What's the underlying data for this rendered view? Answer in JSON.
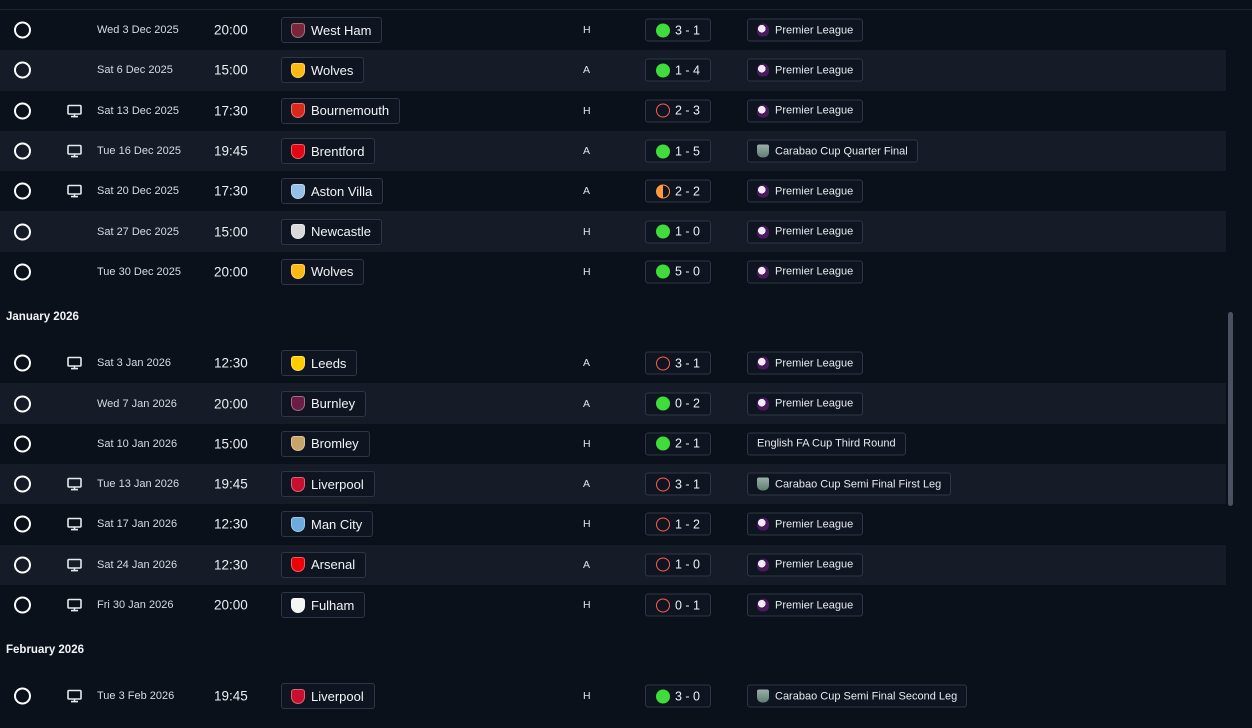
{
  "colors": {
    "win": "#3fdc3c",
    "loss": "#ff5a4f",
    "draw": "#ff9a3c",
    "row_alt": "#151c27",
    "background": "#0b111b"
  },
  "groups": [
    {
      "month": "",
      "fixtures": [
        {
          "date": "Wed 3 Dec 2025",
          "time": "20:00",
          "tv": false,
          "team": "West Ham",
          "crest_color": "#7a263a",
          "venue": "H",
          "outcome": "win",
          "score": "3 - 1",
          "competition": "Premier League",
          "comp_icon": "premier-league-icon"
        },
        {
          "date": "Sat 6 Dec 2025",
          "time": "15:00",
          "tv": false,
          "team": "Wolves",
          "crest_color": "#fdb913",
          "venue": "A",
          "outcome": "win",
          "score": "1 - 4",
          "competition": "Premier League",
          "comp_icon": "premier-league-icon"
        },
        {
          "date": "Sat 13 Dec 2025",
          "time": "17:30",
          "tv": true,
          "team": "Bournemouth",
          "crest_color": "#da291c",
          "venue": "H",
          "outcome": "loss",
          "score": "2 - 3",
          "competition": "Premier League",
          "comp_icon": "premier-league-icon"
        },
        {
          "date": "Tue 16 Dec 2025",
          "time": "19:45",
          "tv": true,
          "team": "Brentford",
          "crest_color": "#e30613",
          "venue": "A",
          "outcome": "win",
          "score": "1 - 5",
          "competition": "Carabao Cup Quarter Final",
          "comp_icon": "carabao-cup-icon"
        },
        {
          "date": "Sat 20 Dec 2025",
          "time": "17:30",
          "tv": true,
          "team": "Aston Villa",
          "crest_color": "#95bfe5",
          "venue": "A",
          "outcome": "draw",
          "score": "2 - 2",
          "competition": "Premier League",
          "comp_icon": "premier-league-icon"
        },
        {
          "date": "Sat 27 Dec 2025",
          "time": "15:00",
          "tv": false,
          "team": "Newcastle",
          "crest_color": "#d9d9d9",
          "venue": "H",
          "outcome": "win",
          "score": "1 - 0",
          "competition": "Premier League",
          "comp_icon": "premier-league-icon"
        },
        {
          "date": "Tue 30 Dec 2025",
          "time": "20:00",
          "tv": false,
          "team": "Wolves",
          "crest_color": "#fdb913",
          "venue": "H",
          "outcome": "win",
          "score": "5 - 0",
          "competition": "Premier League",
          "comp_icon": "premier-league-icon"
        }
      ]
    },
    {
      "month": "January 2026",
      "fixtures": [
        {
          "date": "Sat 3 Jan 2026",
          "time": "12:30",
          "tv": true,
          "team": "Leeds",
          "crest_color": "#ffcd00",
          "venue": "A",
          "outcome": "loss",
          "score": "3 - 1",
          "competition": "Premier League",
          "comp_icon": "premier-league-icon"
        },
        {
          "date": "Wed 7 Jan 2026",
          "time": "20:00",
          "tv": false,
          "team": "Burnley",
          "crest_color": "#6c1d45",
          "venue": "A",
          "outcome": "win",
          "score": "0 - 2",
          "competition": "Premier League",
          "comp_icon": "premier-league-icon"
        },
        {
          "date": "Sat 10 Jan 2026",
          "time": "15:00",
          "tv": false,
          "team": "Bromley",
          "crest_color": "#c9a46a",
          "venue": "H",
          "outcome": "win",
          "score": "2 - 1",
          "competition": "English FA Cup Third Round",
          "comp_icon": ""
        },
        {
          "date": "Tue 13 Jan 2026",
          "time": "19:45",
          "tv": true,
          "team": "Liverpool",
          "crest_color": "#c8102e",
          "venue": "A",
          "outcome": "loss",
          "score": "3 - 1",
          "competition": "Carabao Cup Semi Final First Leg",
          "comp_icon": "carabao-cup-icon"
        },
        {
          "date": "Sat 17 Jan 2026",
          "time": "12:30",
          "tv": true,
          "team": "Man City",
          "crest_color": "#6cabdd",
          "venue": "H",
          "outcome": "loss",
          "score": "1 - 2",
          "competition": "Premier League",
          "comp_icon": "premier-league-icon"
        },
        {
          "date": "Sat 24 Jan 2026",
          "time": "12:30",
          "tv": true,
          "team": "Arsenal",
          "crest_color": "#ef0107",
          "venue": "A",
          "outcome": "loss",
          "score": "1 - 0",
          "competition": "Premier League",
          "comp_icon": "premier-league-icon"
        },
        {
          "date": "Fri 30 Jan 2026",
          "time": "20:00",
          "tv": true,
          "team": "Fulham",
          "crest_color": "#f5f5f5",
          "venue": "H",
          "outcome": "loss",
          "score": "0 - 1",
          "competition": "Premier League",
          "comp_icon": "premier-league-icon"
        }
      ]
    },
    {
      "month": "February 2026",
      "fixtures": [
        {
          "date": "Tue 3 Feb 2026",
          "time": "19:45",
          "tv": true,
          "team": "Liverpool",
          "crest_color": "#c8102e",
          "venue": "H",
          "outcome": "win",
          "score": "3 - 0",
          "competition": "Carabao Cup Semi Final Second Leg",
          "comp_icon": "carabao-cup-icon"
        }
      ]
    }
  ]
}
